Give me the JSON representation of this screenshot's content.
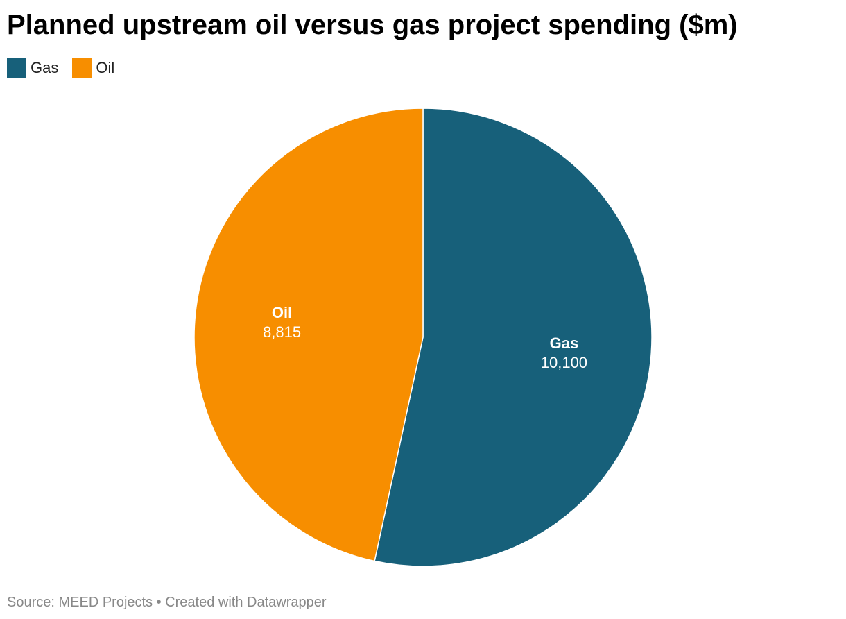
{
  "chart_data": {
    "type": "pie",
    "title": "Planned upstream oil versus gas project spending ($m)",
    "categories": [
      "Gas",
      "Oil"
    ],
    "values": [
      10100,
      8815
    ],
    "value_labels": [
      "10,100",
      "8,815"
    ],
    "colors": [
      "#17607a",
      "#f78e00"
    ],
    "legend": {
      "placement": "top-left",
      "entries": [
        "Gas",
        "Oil"
      ]
    }
  },
  "footer": {
    "source": "Source: MEED Projects • Created with Datawrapper"
  }
}
